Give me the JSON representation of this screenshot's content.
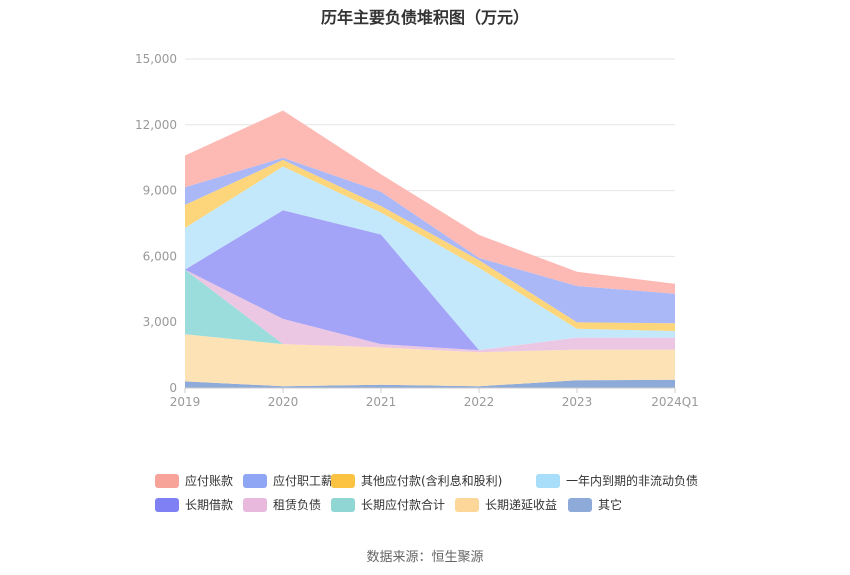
{
  "chart_data": {
    "type": "area",
    "stacked": true,
    "title": "历年主要负债堆积图（万元）",
    "source": "数据来源：恒生聚源",
    "categories": [
      "2019",
      "2020",
      "2021",
      "2022",
      "2023",
      "2024Q1"
    ],
    "ylim": [
      0,
      15000
    ],
    "yticks": [
      0,
      3000,
      6000,
      9000,
      12000,
      15000
    ],
    "ytick_labels": [
      "0",
      "3,000",
      "6,000",
      "9,000",
      "12,000",
      "15,000"
    ],
    "grid": true,
    "legend_position": "bottom",
    "series": [
      {
        "name": "其它",
        "color": "#8eaad8",
        "values": [
          300,
          80,
          150,
          80,
          350,
          380
        ]
      },
      {
        "name": "长期递延收益",
        "color": "#fde2b5",
        "values": [
          2150,
          1920,
          1700,
          1550,
          1400,
          1370
        ]
      },
      {
        "name": "长期应付款合计",
        "color": "#9bdddc",
        "values": [
          2950,
          0,
          0,
          0,
          0,
          0
        ]
      },
      {
        "name": "租赁负债",
        "color": "#ecc7e3",
        "values": [
          0,
          1150,
          150,
          100,
          550,
          550
        ]
      },
      {
        "name": "长期借款",
        "color": "#a3a3f7",
        "values": [
          0,
          4950,
          5000,
          0,
          0,
          0
        ]
      },
      {
        "name": "一年内到期的非流动负债",
        "color": "#c4e8fb",
        "values": [
          1900,
          2000,
          1000,
          3750,
          400,
          300
        ]
      },
      {
        "name": "其他应付款(含利息和股利)",
        "color": "#fdd57a",
        "values": [
          1050,
          300,
          300,
          350,
          300,
          350
        ]
      },
      {
        "name": "应付职工薪酬",
        "color": "#aab8f8",
        "values": [
          800,
          100,
          650,
          100,
          1650,
          1350
        ]
      },
      {
        "name": "应付账款",
        "color": "#fdbab4",
        "values": [
          1450,
          2150,
          800,
          1050,
          650,
          450
        ]
      }
    ],
    "legend": [
      {
        "name": "应付账款",
        "color": "#f7a399"
      },
      {
        "name": "应付职工薪酬",
        "color": "#8fa6f5"
      },
      {
        "name": "其他应付款(含利息和股利)",
        "color": "#fcc343"
      },
      {
        "name": "一年内到期的非流动负债",
        "color": "#a8def9"
      },
      {
        "name": "长期借款",
        "color": "#8080f5"
      },
      {
        "name": "租赁负债",
        "color": "#e8b8dd"
      },
      {
        "name": "长期应付款合计",
        "color": "#8fd6d4"
      },
      {
        "name": "长期递延收益",
        "color": "#fdd79a"
      },
      {
        "name": "其它",
        "color": "#8eaad8"
      }
    ]
  }
}
